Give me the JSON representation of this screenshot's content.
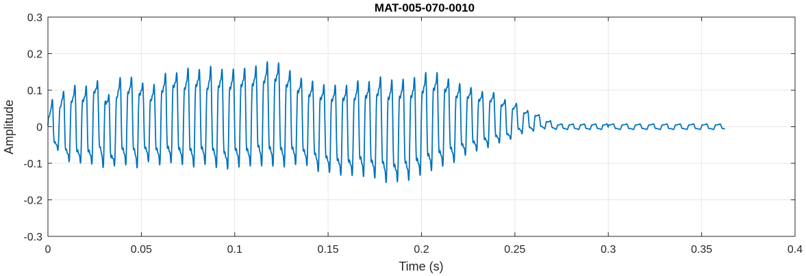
{
  "chart_data": {
    "type": "line",
    "title": "MAT-005-070-0010",
    "xlabel": "Time (s)",
    "ylabel": "Amplitude",
    "xlim": [
      0,
      0.4
    ],
    "ylim": [
      -0.3,
      0.3
    ],
    "xticks": [
      0,
      0.05,
      0.1,
      0.15,
      0.2,
      0.25,
      0.3,
      0.35,
      0.4
    ],
    "xtick_labels": [
      "0",
      "0.05",
      "0.1",
      "0.15",
      "0.2",
      "0.25",
      "0.3",
      "0.35",
      "0.4"
    ],
    "yticks": [
      -0.3,
      -0.2,
      -0.1,
      0,
      0.1,
      0.2,
      0.3
    ],
    "ytick_labels": [
      "-0.3",
      "-0.2",
      "-0.1",
      "0",
      "0.1",
      "0.2",
      "0.3"
    ],
    "grid": true,
    "line_color": "#0072BD",
    "grid_color": "#e6e6e6",
    "series": [
      {
        "sample_period": 0.0025,
        "x_start": 0,
        "x_end": 0.3625,
        "upper_envelope": [
          0.05,
          0.1,
          0.07,
          0.12,
          0.13,
          0.13,
          0.15,
          0.14,
          0.14,
          0.16,
          0.17,
          0.15,
          0.15,
          0.12,
          0.12,
          0.16,
          0.18,
          0.17,
          0.17,
          0.17,
          0.16,
          0.13,
          0.14,
          0.15,
          0.17,
          0.18,
          0.2,
          0.19,
          0.18,
          0.18,
          0.2,
          0.2,
          0.2,
          0.19,
          0.18,
          0.21,
          0.19,
          0.2,
          0.19,
          0.19,
          0.2,
          0.2,
          0.2,
          0.2,
          0.2,
          0.21,
          0.21,
          0.22,
          0.22,
          0.22,
          0.21,
          0.2,
          0.19,
          0.18,
          0.17,
          0.16,
          0.16,
          0.16,
          0.16,
          0.15,
          0.15,
          0.15,
          0.15,
          0.16,
          0.15,
          0.15,
          0.16,
          0.17,
          0.17,
          0.16,
          0.17,
          0.18,
          0.17,
          0.17,
          0.17,
          0.17,
          0.17,
          0.17,
          0.17,
          0.18,
          0.18,
          0.19,
          0.19,
          0.19,
          0.18,
          0.18,
          0.16,
          0.15,
          0.15,
          0.14,
          0.14,
          0.13,
          0.13,
          0.12,
          0.12,
          0.12,
          0.11,
          0.1,
          0.09,
          0.08,
          0.08,
          0.07,
          0.06,
          0.05,
          0.05,
          0.04,
          0.03,
          0.02,
          0.02,
          0.01,
          0.01,
          0.01,
          0.01,
          0.01,
          0.01,
          0.01,
          0.01,
          0.01,
          0.01,
          0.01,
          0.01,
          0.01,
          0.01,
          0.01,
          0.01,
          0.01,
          0.01,
          0.01,
          0.01,
          0.01,
          0.01,
          0.01,
          0.01,
          0.01,
          0.01,
          0.01,
          0.01,
          0.01,
          0.01,
          0.01,
          0.01,
          0.01,
          0.01,
          0.01,
          0.01,
          0.01
        ],
        "lower_envelope": [
          -0.07,
          -0.09,
          -0.08,
          -0.1,
          -0.13,
          -0.12,
          -0.14,
          -0.13,
          -0.14,
          -0.14,
          -0.13,
          -0.12,
          -0.15,
          -0.16,
          -0.14,
          -0.13,
          -0.14,
          -0.14,
          -0.13,
          -0.15,
          -0.13,
          -0.12,
          -0.13,
          -0.13,
          -0.14,
          -0.14,
          -0.14,
          -0.13,
          -0.14,
          -0.14,
          -0.15,
          -0.15,
          -0.15,
          -0.14,
          -0.14,
          -0.15,
          -0.15,
          -0.15,
          -0.16,
          -0.15,
          -0.15,
          -0.15,
          -0.15,
          -0.15,
          -0.14,
          -0.14,
          -0.15,
          -0.15,
          -0.15,
          -0.15,
          -0.15,
          -0.15,
          -0.14,
          -0.14,
          -0.14,
          -0.14,
          -0.14,
          -0.15,
          -0.16,
          -0.16,
          -0.16,
          -0.16,
          -0.17,
          -0.17,
          -0.18,
          -0.17,
          -0.17,
          -0.17,
          -0.18,
          -0.18,
          -0.18,
          -0.18,
          -0.19,
          -0.2,
          -0.2,
          -0.19,
          -0.18,
          -0.19,
          -0.18,
          -0.18,
          -0.17,
          -0.17,
          -0.16,
          -0.16,
          -0.15,
          -0.14,
          -0.13,
          -0.13,
          -0.12,
          -0.11,
          -0.1,
          -0.1,
          -0.09,
          -0.09,
          -0.08,
          -0.08,
          -0.07,
          -0.06,
          -0.06,
          -0.05,
          -0.04,
          -0.03,
          -0.03,
          -0.02,
          -0.02,
          -0.01,
          -0.01,
          -0.01,
          -0.01,
          -0.01,
          -0.01,
          -0.01,
          -0.01,
          -0.01,
          -0.01,
          -0.01,
          -0.01,
          -0.01,
          -0.01,
          -0.01,
          -0.01,
          -0.01,
          -0.01,
          -0.01,
          -0.01,
          -0.01,
          -0.01,
          -0.01,
          -0.01,
          -0.01,
          -0.01,
          -0.01,
          -0.01,
          -0.01,
          -0.01,
          -0.01,
          -0.01,
          -0.01,
          -0.01,
          -0.01,
          -0.01,
          -0.01,
          -0.01,
          -0.01,
          -0.01,
          -0.01
        ]
      }
    ]
  }
}
